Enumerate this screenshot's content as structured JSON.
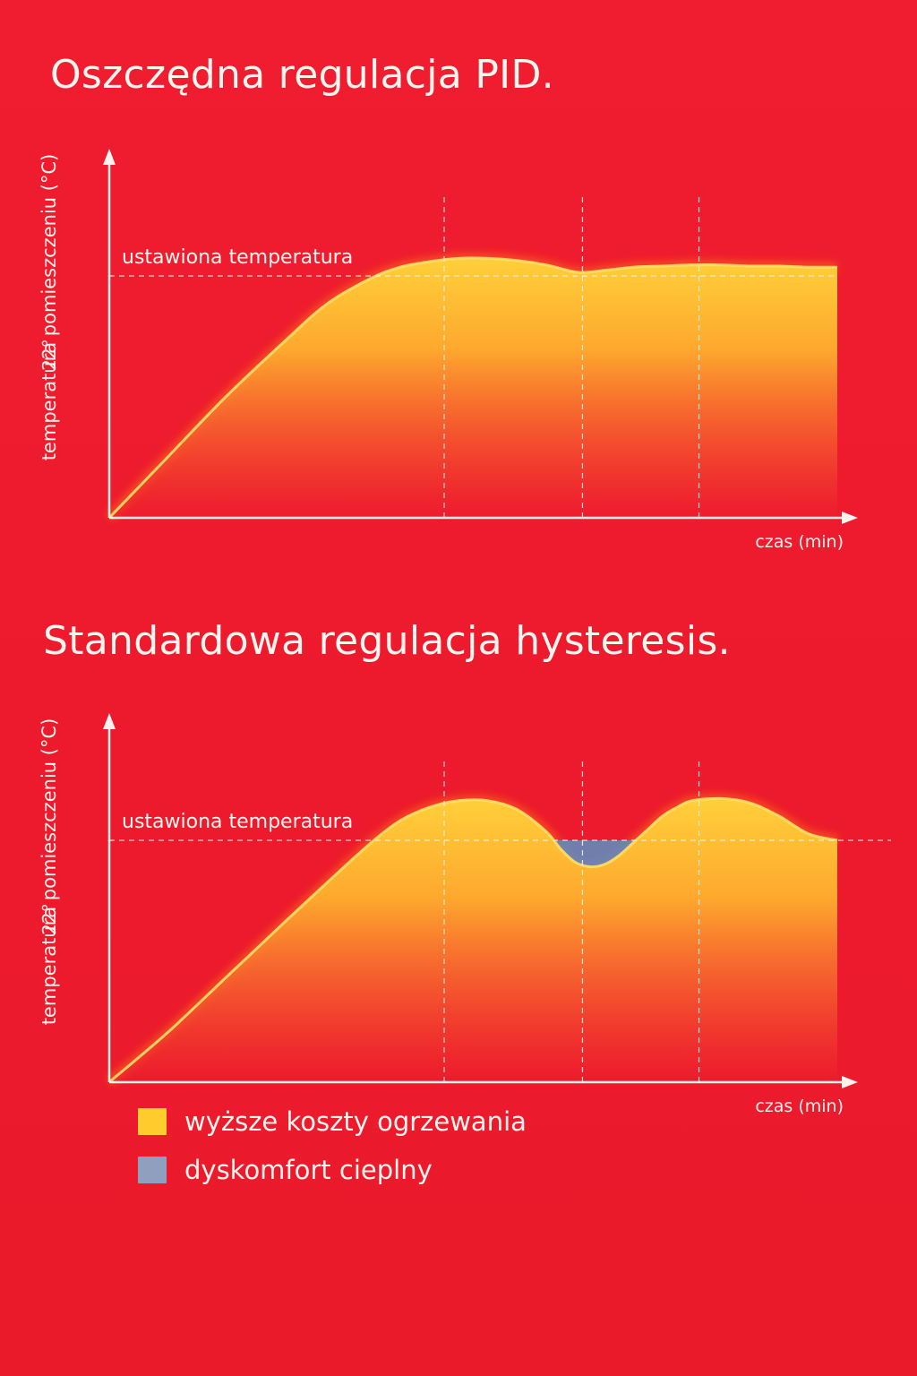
{
  "colors": {
    "background": "#ee1b2e",
    "area_top": "#ffd03a",
    "area_bottom": "#ee1b2e",
    "curve": "#ffe066",
    "discomfort": "#5b8fc4",
    "axis": "#fff3ee"
  },
  "chart_data": [
    {
      "type": "area",
      "title": "Oszczędna regulacja PID.",
      "xlabel": "czas (min)",
      "ylabel": "temperatura pomieszczeniu (°C)",
      "ytick": "22°",
      "setpoint_label": "ustawiona temperatura",
      "xlim": [
        0,
        100
      ],
      "ylim": [
        0,
        30
      ],
      "setpoint": 22,
      "vlines": [
        46,
        65,
        81
      ],
      "grid": false,
      "series": [
        {
          "x": [
            0,
            8,
            16,
            24,
            30,
            36,
            40,
            44,
            48,
            52,
            56,
            60,
            63,
            65,
            68,
            72,
            76,
            80,
            84,
            88,
            92,
            96,
            100
          ],
          "y": [
            0,
            5.5,
            11,
            16,
            19.5,
            21.8,
            22.8,
            23.3,
            23.6,
            23.6,
            23.4,
            23.0,
            22.5,
            22.3,
            22.5,
            22.8,
            22.9,
            23.0,
            23.0,
            22.9,
            22.9,
            22.8,
            22.8
          ]
        }
      ]
    },
    {
      "type": "area",
      "title": "Standardowa regulacja hysteresis.",
      "xlabel": "czas (min)",
      "ylabel": "temperatura pomieszczeniu (°C)",
      "ytick": "22°",
      "setpoint_label": "ustawiona temperatura",
      "xlim": [
        0,
        100
      ],
      "ylim": [
        0,
        30
      ],
      "setpoint": 22,
      "vlines": [
        46,
        65,
        81
      ],
      "grid": false,
      "series": [
        {
          "x": [
            0,
            8,
            16,
            24,
            30,
            36,
            40,
            44,
            48,
            52,
            56,
            60,
            62,
            64,
            66,
            68,
            70,
            72,
            74,
            76,
            78,
            80,
            84,
            88,
            92,
            96,
            100
          ],
          "y": [
            0,
            4.5,
            9.5,
            14.5,
            18.2,
            21.8,
            23.8,
            25.0,
            25.6,
            25.6,
            24.8,
            22.8,
            21.2,
            20.0,
            19.6,
            19.8,
            20.6,
            21.8,
            23.0,
            24.2,
            25.0,
            25.6,
            25.8,
            25.4,
            24.2,
            22.6,
            22.0
          ]
        }
      ]
    }
  ],
  "legend": [
    {
      "label": "wyższe koszty ogrzewania",
      "color": "#ffcc2e"
    },
    {
      "label": "dyskomfort cieplny",
      "color": "#8fa0bf"
    }
  ]
}
